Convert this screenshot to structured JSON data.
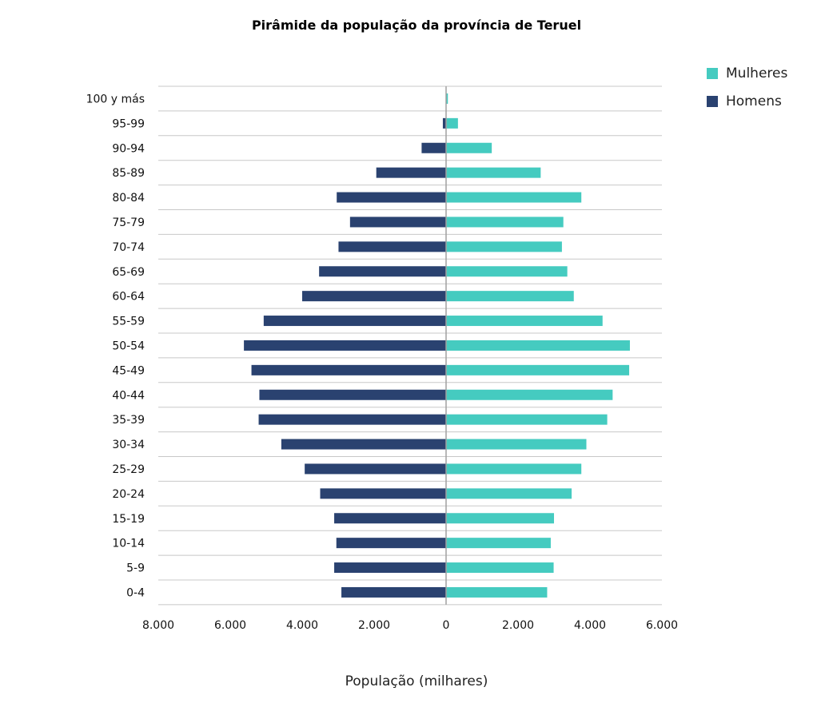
{
  "chart_data": {
    "type": "bar",
    "orientation": "horizontal",
    "title": "Pirâmide da população da província de Teruel",
    "xlabel": "População (milhares)",
    "ylabel": "",
    "xlim": [
      -8000,
      6000
    ],
    "x_ticks": [
      -8000,
      -6000,
      -4000,
      -2000,
      0,
      2000,
      4000,
      6000
    ],
    "x_tick_labels": [
      "8.000",
      "6.000",
      "4.000",
      "2.000",
      "0",
      "2.000",
      "4.000",
      "6.000"
    ],
    "grid": "horizontal",
    "legend_position": "top-right",
    "categories": [
      "100 y más",
      "95-99",
      "90-94",
      "85-89",
      "80-84",
      "75-79",
      "70-74",
      "65-69",
      "60-64",
      "55-59",
      "50-54",
      "45-49",
      "40-44",
      "35-39",
      "30-34",
      "25-29",
      "20-24",
      "15-19",
      "10-14",
      "5-9",
      "0-4"
    ],
    "series": [
      {
        "name": "Mulheres",
        "color": "#45cbc0",
        "values": [
          50,
          330,
          1270,
          2630,
          3760,
          3260,
          3220,
          3370,
          3550,
          4350,
          5110,
          5090,
          4630,
          4480,
          3900,
          3760,
          3490,
          3000,
          2910,
          2990,
          2810
        ]
      },
      {
        "name": "Homens",
        "color": "#2a4270",
        "values": [
          0,
          90,
          680,
          1940,
          3040,
          2670,
          2990,
          3530,
          4000,
          5070,
          5620,
          5410,
          5190,
          5210,
          4580,
          3930,
          3500,
          3110,
          3050,
          3110,
          2910
        ]
      }
    ]
  }
}
